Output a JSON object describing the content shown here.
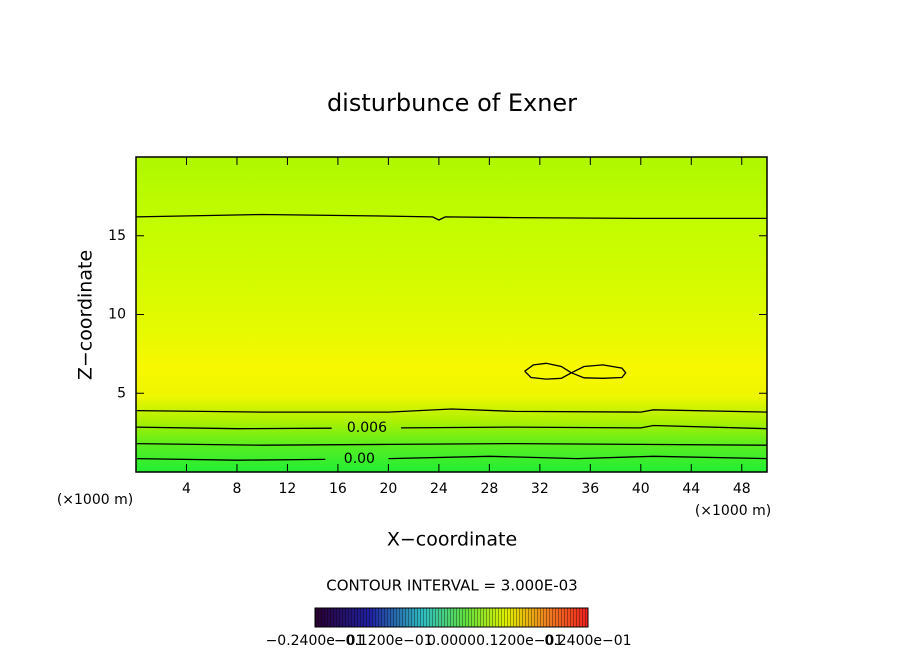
{
  "chart_data": {
    "type": "contour",
    "title": "disturbunce of Exner",
    "x_label": "X−coordinate",
    "y_label": "Z−coordinate",
    "x_unit": "(×1000 m)",
    "y_unit": "(×1000 m)",
    "xlim": [
      0,
      50
    ],
    "xticks": [
      4,
      8,
      12,
      16,
      20,
      24,
      28,
      32,
      36,
      40,
      44,
      48
    ],
    "ylim": [
      0,
      20
    ],
    "yticks": [
      5,
      10,
      15
    ],
    "contours": [
      {
        "x": [
          0,
          10,
          20,
          23.5,
          24,
          24.5,
          30,
          40,
          50
        ],
        "y": [
          16.2,
          16.35,
          16.25,
          16.2,
          16.0,
          16.2,
          16.15,
          16.1,
          16.1
        ]
      },
      {
        "x": [
          0,
          10,
          20,
          25,
          30,
          40,
          41,
          50
        ],
        "y": [
          3.9,
          3.8,
          3.8,
          4.0,
          3.85,
          3.8,
          3.95,
          3.8
        ]
      },
      {
        "label": "0.006",
        "x": [
          0,
          8,
          15.5,
          18.3,
          21,
          30,
          40,
          41,
          50
        ],
        "y": [
          2.85,
          2.75,
          2.78,
          null,
          2.8,
          2.85,
          2.8,
          2.95,
          2.75
        ]
      },
      {
        "x": [
          0,
          10,
          20,
          30,
          40,
          50
        ],
        "y": [
          1.8,
          1.7,
          1.75,
          1.8,
          1.75,
          1.7
        ]
      },
      {
        "label": "0.00",
        "x": [
          0,
          8,
          15,
          17.7,
          20,
          28,
          35,
          41,
          50
        ],
        "y": [
          0.85,
          0.75,
          0.8,
          null,
          0.85,
          1.0,
          0.85,
          1.0,
          0.85
        ]
      },
      {
        "x": [
          30.8,
          31.5,
          32.5,
          33.7,
          34.5,
          33.7,
          32.5,
          31.3,
          30.8
        ],
        "y": [
          6.4,
          6.8,
          6.9,
          6.7,
          6.3,
          5.95,
          5.9,
          6.0,
          6.4
        ]
      },
      {
        "x": [
          34.5,
          35.5,
          37,
          38.5,
          38.8,
          38.5,
          37,
          35.5,
          34.5
        ],
        "y": [
          6.3,
          6.7,
          6.8,
          6.6,
          6.3,
          6.0,
          5.95,
          5.98,
          6.3
        ]
      }
    ],
    "contour_interval": "CONTOUR INTERVAL = 3.000E-03",
    "colorbar_labels": [
      "−0.2400e−01",
      "−0.1200e−01",
      "0.0000",
      "0.1200e−01",
      "0.2400e−01"
    ]
  }
}
